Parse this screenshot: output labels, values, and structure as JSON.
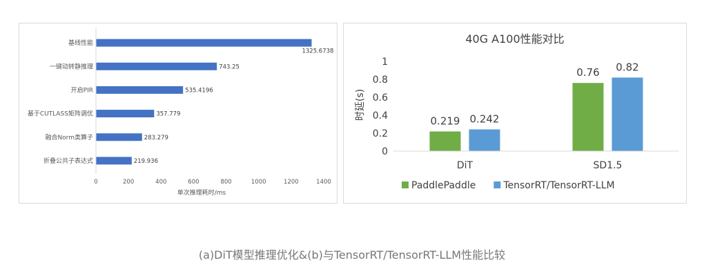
{
  "caption": "(a)DiT模型推理优化&(b)与TensorRT/TensorRT-LLM性能比较",
  "chart_data": [
    {
      "type": "bar",
      "orientation": "horizontal",
      "categories": [
        "基线性能",
        "一键动转静推理",
        "开启PIR",
        "基于CUTLASS矩阵调优",
        "融合Norm类算子",
        "折叠公共子表达式"
      ],
      "values": [
        1325.6738,
        743.25,
        535.4196,
        357.779,
        283.279,
        219.936
      ],
      "data_labels": [
        "1325.6738",
        "743.25",
        "535.4196",
        "357.779",
        "283.279",
        "219.936"
      ],
      "xlabel": "单次推理耗时/ms",
      "xlim": [
        0,
        1400
      ],
      "xticks": [
        0,
        200,
        400,
        600,
        800,
        1000,
        1200,
        1400
      ],
      "grid": false,
      "colors": {
        "bar": "#4472c4",
        "text": "#595959",
        "axis": "#d9d9d9"
      }
    },
    {
      "type": "bar",
      "title": "40G A100性能对比",
      "categories": [
        "DiT",
        "SD1.5"
      ],
      "series": [
        {
          "name": "PaddlePaddle",
          "values": [
            0.219,
            0.76
          ],
          "labels": [
            "0.219",
            "0.76"
          ],
          "color": "#70ad47"
        },
        {
          "name": "TensorRT/TensorRT-LLM",
          "values": [
            0.242,
            0.82
          ],
          "labels": [
            "0.242",
            "0.82"
          ],
          "color": "#5b9bd5"
        }
      ],
      "ylabel": "时延(s)",
      "ylim": [
        0,
        1
      ],
      "yticks": [
        "0",
        "0.2",
        "0.4",
        "0.6",
        "0.8",
        "1"
      ],
      "legend": "bottom",
      "grid": false,
      "colors": {
        "text": "#404040",
        "axis": "#d9d9d9"
      }
    }
  ]
}
